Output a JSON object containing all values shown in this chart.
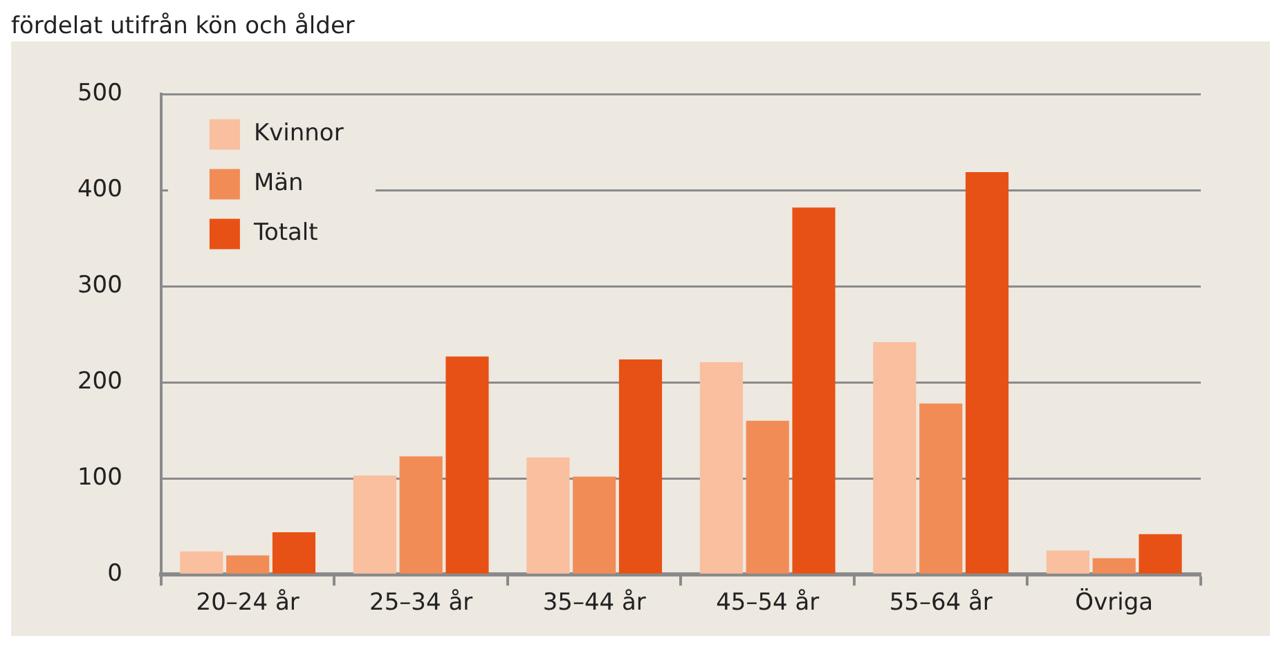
{
  "chart_data": {
    "type": "bar",
    "title": "fördelat utifrån kön och ålder",
    "categories": [
      "20–24 år",
      "25–34 år",
      "35–44 år",
      "45–54 år",
      "55–64 år",
      "Övriga"
    ],
    "series": [
      {
        "name": "Kvinnor",
        "color": "#f9bf9f",
        "values": [
          24,
          103,
          122,
          221,
          242,
          25
        ]
      },
      {
        "name": "Män",
        "color": "#f28c56",
        "values": [
          20,
          123,
          102,
          160,
          178,
          17
        ]
      },
      {
        "name": "Totalt",
        "color": "#e85115",
        "values": [
          44,
          227,
          224,
          382,
          419,
          42
        ]
      }
    ],
    "ylim": [
      0,
      500
    ],
    "yticks": [
      0,
      100,
      200,
      300,
      400,
      500
    ],
    "grid": "y",
    "legend": "top left"
  }
}
